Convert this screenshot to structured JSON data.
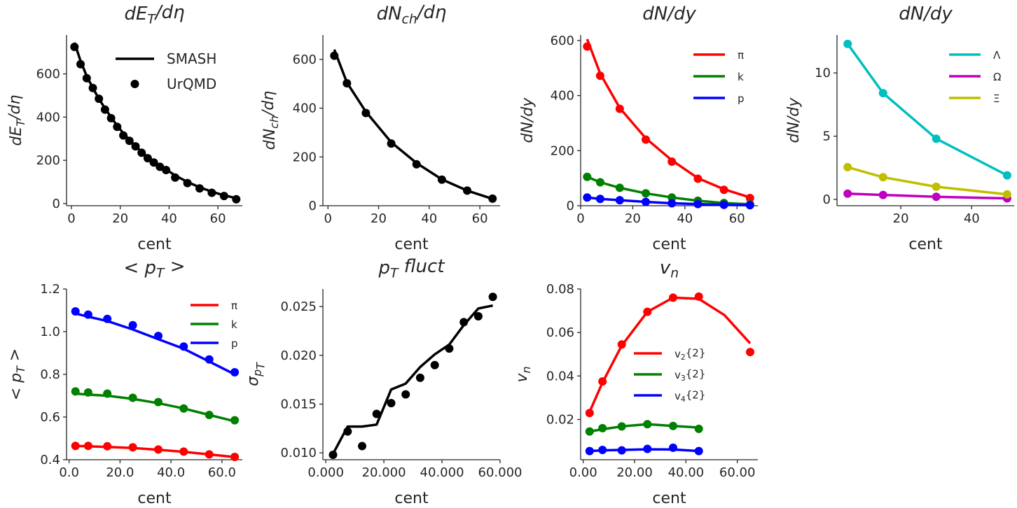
{
  "chart_data": [
    {
      "type": "line",
      "title": "dE_T/dη",
      "xlabel": "cent",
      "ylabel": "dE_T/dη",
      "xlim": [
        -2,
        70
      ],
      "ylim": [
        -10,
        780
      ],
      "xticks": [
        0,
        20,
        40,
        60
      ],
      "yticks": [
        0,
        200,
        400,
        600
      ],
      "legend": {
        "position": "top-right",
        "entries": [
          {
            "label": "SMASH",
            "style": "line"
          },
          {
            "label": "UrQMD",
            "style": "marker"
          }
        ]
      },
      "series": [
        {
          "name": "SMASH",
          "style": "line",
          "color": "#000000",
          "x": [
            1.25,
            3.75,
            6.25,
            8.75,
            11.25,
            13.75,
            16.25,
            18.75,
            21.25,
            23.75,
            26.25,
            28.75,
            31.25,
            33.75,
            36.25,
            38.75,
            42.5,
            47.5,
            52.5,
            57.5,
            62.5,
            67.5
          ],
          "y": [
            745,
            660,
            590,
            535,
            485,
            440,
            400,
            360,
            325,
            295,
            265,
            240,
            215,
            195,
            175,
            158,
            130,
            100,
            75,
            55,
            38,
            25
          ]
        },
        {
          "name": "UrQMD",
          "style": "marker",
          "color": "#000000",
          "x": [
            1.25,
            3.75,
            6.25,
            8.75,
            11.25,
            13.75,
            16.25,
            18.75,
            21.25,
            23.75,
            26.25,
            28.75,
            31.25,
            33.75,
            36.25,
            38.75,
            42.5,
            47.5,
            52.5,
            57.5,
            62.5,
            67.5
          ],
          "y": [
            725,
            645,
            580,
            535,
            485,
            435,
            395,
            355,
            315,
            290,
            265,
            235,
            210,
            190,
            170,
            155,
            120,
            95,
            70,
            50,
            35,
            20
          ]
        }
      ]
    },
    {
      "type": "line",
      "title": "dN_ch/dη",
      "xlabel": "cent",
      "ylabel": "dN_ch/dη",
      "xlim": [
        -2,
        68
      ],
      "ylim": [
        0,
        700
      ],
      "xticks": [
        0,
        20,
        40,
        60
      ],
      "yticks": [
        0,
        200,
        400,
        600
      ],
      "series": [
        {
          "name": "SMASH",
          "style": "line",
          "color": "#000000",
          "x": [
            2.5,
            7.5,
            15,
            25,
            35,
            45,
            55,
            65
          ],
          "y": [
            640,
            505,
            385,
            260,
            175,
            108,
            62,
            28
          ]
        },
        {
          "name": "UrQMD",
          "style": "marker",
          "color": "#000000",
          "x": [
            2.5,
            7.5,
            15,
            25,
            35,
            45,
            55,
            65
          ],
          "y": [
            615,
            502,
            380,
            255,
            170,
            107,
            62,
            29
          ]
        }
      ]
    },
    {
      "type": "line",
      "title": "dN/dy",
      "xlabel": "cent",
      "ylabel": "dN/dy",
      "xlim": [
        0,
        68
      ],
      "ylim": [
        0,
        620
      ],
      "xticks": [
        0,
        20,
        40,
        60
      ],
      "yticks": [
        0,
        200,
        400,
        600
      ],
      "legend": {
        "position": "top-right",
        "entries": [
          {
            "label": "π",
            "color": "#ff0000"
          },
          {
            "label": "k",
            "color": "#008000"
          },
          {
            "label": "p",
            "color": "#0000ff"
          }
        ]
      },
      "series": [
        {
          "name": "π SMASH",
          "style": "line",
          "color": "#ff0000",
          "x": [
            2.5,
            7.5,
            15,
            25,
            35,
            45,
            55,
            65
          ],
          "y": [
            605,
            480,
            355,
            245,
            165,
            100,
            60,
            30
          ]
        },
        {
          "name": "π UrQMD",
          "style": "marker",
          "color": "#ff0000",
          "x": [
            2.5,
            7.5,
            15,
            25,
            35,
            45,
            55,
            65
          ],
          "y": [
            578,
            472,
            352,
            240,
            160,
            98,
            58,
            28
          ]
        },
        {
          "name": "k SMASH",
          "style": "line",
          "color": "#008000",
          "x": [
            2.5,
            7.5,
            15,
            25,
            35,
            45,
            55,
            65
          ],
          "y": [
            105,
            85,
            65,
            45,
            30,
            18,
            10,
            5
          ]
        },
        {
          "name": "k UrQMD",
          "style": "marker",
          "color": "#008000",
          "x": [
            2.5,
            7.5,
            15,
            25,
            35,
            45,
            55,
            65
          ],
          "y": [
            105,
            85,
            65,
            45,
            30,
            18,
            10,
            5
          ]
        },
        {
          "name": "p SMASH",
          "style": "line",
          "color": "#0000ff",
          "x": [
            2.5,
            7.5,
            15,
            25,
            35,
            45,
            55,
            65
          ],
          "y": [
            30,
            25,
            20,
            14,
            9,
            6,
            3,
            2
          ]
        },
        {
          "name": "p UrQMD",
          "style": "marker",
          "color": "#0000ff",
          "x": [
            2.5,
            7.5,
            15,
            25,
            35,
            45,
            55,
            65
          ],
          "y": [
            30,
            25,
            20,
            14,
            9,
            6,
            3,
            2
          ]
        }
      ]
    },
    {
      "type": "line",
      "title": "dN/dy",
      "xlabel": "cent",
      "ylabel": "dN/dy",
      "xlim": [
        2,
        52
      ],
      "ylim": [
        -0.5,
        13
      ],
      "xticks": [
        20,
        40
      ],
      "yticks": [
        0,
        5,
        10
      ],
      "legend": {
        "position": "top-right",
        "entries": [
          {
            "label": "Λ",
            "color": "#00bfbf"
          },
          {
            "label": "Ω",
            "color": "#bf00bf"
          },
          {
            "label": "Ξ",
            "color": "#bfbf00"
          }
        ]
      },
      "series": [
        {
          "name": "Λ",
          "style": "line+marker",
          "color": "#00bfbf",
          "x": [
            5,
            15,
            30,
            50
          ],
          "y": [
            12.3,
            8.4,
            4.8,
            1.9
          ]
        },
        {
          "name": "Ω",
          "style": "line+marker",
          "color": "#bf00bf",
          "x": [
            5,
            15,
            30,
            50
          ],
          "y": [
            0.45,
            0.35,
            0.2,
            0.08
          ]
        },
        {
          "name": "Ξ",
          "style": "line+marker",
          "color": "#bfbf00",
          "x": [
            5,
            15,
            30,
            50
          ],
          "y": [
            2.55,
            1.75,
            1.0,
            0.4
          ]
        }
      ]
    },
    {
      "type": "line",
      "title": "< p_T >",
      "xlabel": "cent",
      "ylabel": "< p_T >",
      "xlim": [
        -1,
        68
      ],
      "ylim": [
        0.4,
        1.2
      ],
      "xticks": [
        0,
        20,
        40,
        60
      ],
      "yticks": [
        0.4,
        0.6,
        0.8,
        1.0,
        1.2
      ],
      "legend": {
        "position": "top-right",
        "entries": [
          {
            "label": "π",
            "color": "#ff0000"
          },
          {
            "label": "k",
            "color": "#008000"
          },
          {
            "label": "p",
            "color": "#0000ff"
          }
        ]
      },
      "series": [
        {
          "name": "π SMASH",
          "style": "line",
          "color": "#ff0000",
          "x": [
            2.5,
            7.5,
            15,
            25,
            35,
            45,
            55,
            65
          ],
          "y": [
            0.465,
            0.463,
            0.46,
            0.455,
            0.447,
            0.437,
            0.425,
            0.412
          ]
        },
        {
          "name": "π UrQMD",
          "style": "marker",
          "color": "#ff0000",
          "x": [
            2.5,
            7.5,
            15,
            25,
            35,
            45,
            55,
            65
          ],
          "y": [
            0.465,
            0.465,
            0.463,
            0.458,
            0.448,
            0.438,
            0.425,
            0.413
          ]
        },
        {
          "name": "k SMASH",
          "style": "line",
          "color": "#008000",
          "x": [
            2.5,
            7.5,
            15,
            25,
            35,
            45,
            55,
            65
          ],
          "y": [
            0.71,
            0.705,
            0.7,
            0.685,
            0.665,
            0.64,
            0.61,
            0.58
          ]
        },
        {
          "name": "k UrQMD",
          "style": "marker",
          "color": "#008000",
          "x": [
            2.5,
            7.5,
            15,
            25,
            35,
            45,
            55,
            65
          ],
          "y": [
            0.72,
            0.715,
            0.71,
            0.69,
            0.67,
            0.64,
            0.61,
            0.585
          ]
        },
        {
          "name": "p SMASH",
          "style": "line",
          "color": "#0000ff",
          "x": [
            2.5,
            7.5,
            15,
            25,
            35,
            45,
            55,
            65
          ],
          "y": [
            1.085,
            1.07,
            1.05,
            1.01,
            0.965,
            0.92,
            0.86,
            0.8
          ]
        },
        {
          "name": "p UrQMD",
          "style": "marker",
          "color": "#0000ff",
          "x": [
            2.5,
            7.5,
            15,
            25,
            35,
            45,
            55,
            65
          ],
          "y": [
            1.095,
            1.08,
            1.06,
            1.03,
            0.98,
            0.93,
            0.87,
            0.81
          ]
        }
      ]
    },
    {
      "type": "line",
      "title": "p_T fluct",
      "xlabel": "cent",
      "ylabel": "σ_{p_T}",
      "xlim": [
        -1,
        60
      ],
      "ylim": [
        0.0093,
        0.0268
      ],
      "xticks": [
        0,
        20,
        40,
        60
      ],
      "yticks": [
        0.01,
        0.015,
        0.02,
        0.025
      ],
      "series": [
        {
          "name": "SMASH",
          "style": "line",
          "color": "#000000",
          "x": [
            2.5,
            7.5,
            12.5,
            17.5,
            22.5,
            27.5,
            32.5,
            37.5,
            42.5,
            47.5,
            52.5,
            57.5
          ],
          "y": [
            0.0099,
            0.0127,
            0.0127,
            0.0129,
            0.0165,
            0.0171,
            0.0188,
            0.0201,
            0.0211,
            0.0231,
            0.0248,
            0.0251
          ]
        },
        {
          "name": "UrQMD",
          "style": "marker",
          "color": "#000000",
          "x": [
            2.5,
            7.5,
            12.5,
            17.5,
            22.5,
            27.5,
            32.5,
            37.5,
            42.5,
            47.5,
            52.5,
            57.5
          ],
          "y": [
            0.0098,
            0.0122,
            0.0107,
            0.014,
            0.0151,
            0.016,
            0.0177,
            0.019,
            0.0207,
            0.0234,
            0.024,
            0.026
          ]
        }
      ]
    },
    {
      "type": "line",
      "title": "v_n",
      "xlabel": "cent",
      "ylabel": "v_n",
      "xlim": [
        -1,
        68
      ],
      "ylim": [
        0.0015,
        0.08
      ],
      "xticks": [
        0,
        20,
        40,
        60
      ],
      "yticks": [
        0.02,
        0.04,
        0.06,
        0.08
      ],
      "legend": {
        "position": "center",
        "entries": [
          {
            "label": "v_2{2}",
            "color": "#ff0000"
          },
          {
            "label": "v_3{2}",
            "color": "#008000"
          },
          {
            "label": "v_4{2}",
            "color": "#0000ff"
          }
        ]
      },
      "series": [
        {
          "name": "v2{2} SMASH",
          "style": "line",
          "color": "#ff0000",
          "x": [
            2.5,
            7.5,
            15,
            25,
            35,
            45,
            55,
            65
          ],
          "y": [
            0.0235,
            0.037,
            0.054,
            0.0695,
            0.076,
            0.0755,
            0.068,
            0.055
          ]
        },
        {
          "name": "v2{2} UrQMD",
          "style": "marker",
          "color": "#ff0000",
          "x": [
            2.5,
            7.5,
            15,
            25,
            35,
            45,
            65
          ],
          "y": [
            0.023,
            0.0375,
            0.0545,
            0.0695,
            0.076,
            0.0765,
            0.051
          ]
        },
        {
          "name": "v3{2} SMASH",
          "style": "line",
          "color": "#008000",
          "x": [
            2.5,
            7.5,
            15,
            25,
            35,
            45
          ],
          "y": [
            0.0145,
            0.0155,
            0.0168,
            0.0178,
            0.017,
            0.0163
          ]
        },
        {
          "name": "v3{2} UrQMD",
          "style": "marker",
          "color": "#008000",
          "x": [
            2.5,
            7.5,
            15,
            25,
            35,
            45
          ],
          "y": [
            0.0145,
            0.016,
            0.0168,
            0.0178,
            0.017,
            0.0157
          ]
        },
        {
          "name": "v4{2} SMASH",
          "style": "line",
          "color": "#0000ff",
          "x": [
            2.5,
            7.5,
            15,
            25,
            35,
            45
          ],
          "y": [
            0.0055,
            0.0058,
            0.006,
            0.0063,
            0.0062,
            0.0055
          ]
        },
        {
          "name": "v4{2} UrQMD",
          "style": "marker",
          "color": "#0000ff",
          "x": [
            2.5,
            7.5,
            15,
            25,
            35,
            45
          ],
          "y": [
            0.0055,
            0.006,
            0.0058,
            0.0065,
            0.007,
            0.0055
          ]
        }
      ]
    }
  ]
}
